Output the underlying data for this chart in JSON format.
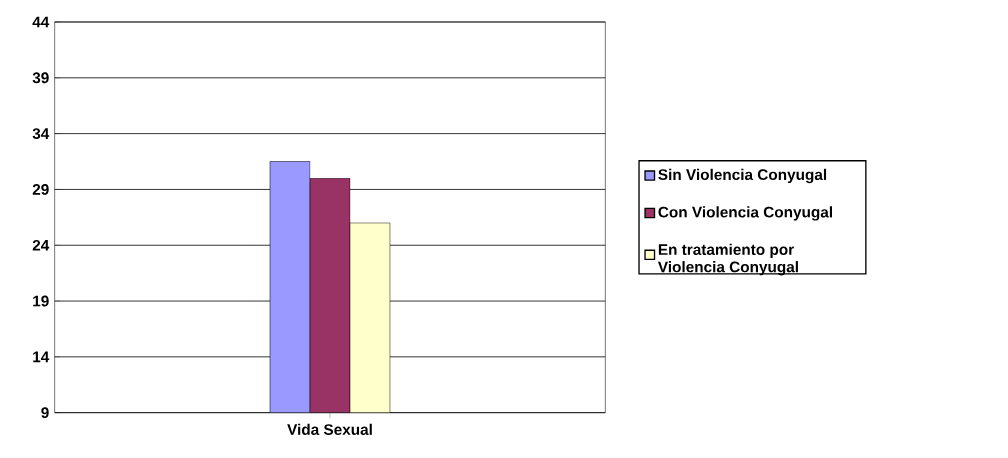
{
  "chart_data": {
    "type": "bar",
    "categories": [
      "Vida Sexual"
    ],
    "series": [
      {
        "name": "Sin Violencia Conyugal",
        "color": "#9999ff",
        "values": [
          31.5
        ]
      },
      {
        "name": "Con Violencia Conyugal",
        "color": "#993366",
        "values": [
          30
        ]
      },
      {
        "name": "En tratamiento por Violencia Conyugal",
        "color": "#ffffcc",
        "values": [
          26
        ]
      }
    ],
    "ylim": [
      9,
      44
    ],
    "yticks": [
      9,
      14,
      19,
      24,
      29,
      34,
      39,
      44
    ],
    "grid": "y",
    "legend": "right"
  }
}
